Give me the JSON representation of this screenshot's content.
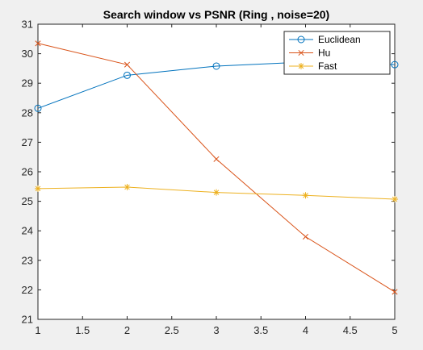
{
  "chart_data": {
    "type": "line",
    "title": "Search window vs PSNR (Ring , noise=20)",
    "xlabel": "",
    "ylabel": "",
    "xlim": [
      1,
      5
    ],
    "ylim": [
      21,
      31
    ],
    "x_ticks": [
      "1",
      "1.5",
      "2",
      "2.5",
      "3",
      "3.5",
      "4",
      "4.5",
      "5"
    ],
    "y_ticks": [
      "21",
      "22",
      "23",
      "24",
      "25",
      "26",
      "27",
      "28",
      "29",
      "30",
      "31"
    ],
    "grid": false,
    "legend_position": "top-right",
    "x": [
      1,
      2,
      3,
      4,
      5
    ],
    "series": [
      {
        "name": "Euclidean",
        "values": [
          28.15,
          29.27,
          29.58,
          29.72,
          29.63
        ],
        "color": "#0072bd",
        "marker": "circle"
      },
      {
        "name": "Hu",
        "values": [
          30.35,
          29.63,
          26.43,
          23.8,
          21.93
        ],
        "color": "#d95319",
        "marker": "x"
      },
      {
        "name": "Fast",
        "values": [
          25.43,
          25.48,
          25.3,
          25.2,
          25.07
        ],
        "color": "#edb120",
        "marker": "star"
      }
    ]
  }
}
